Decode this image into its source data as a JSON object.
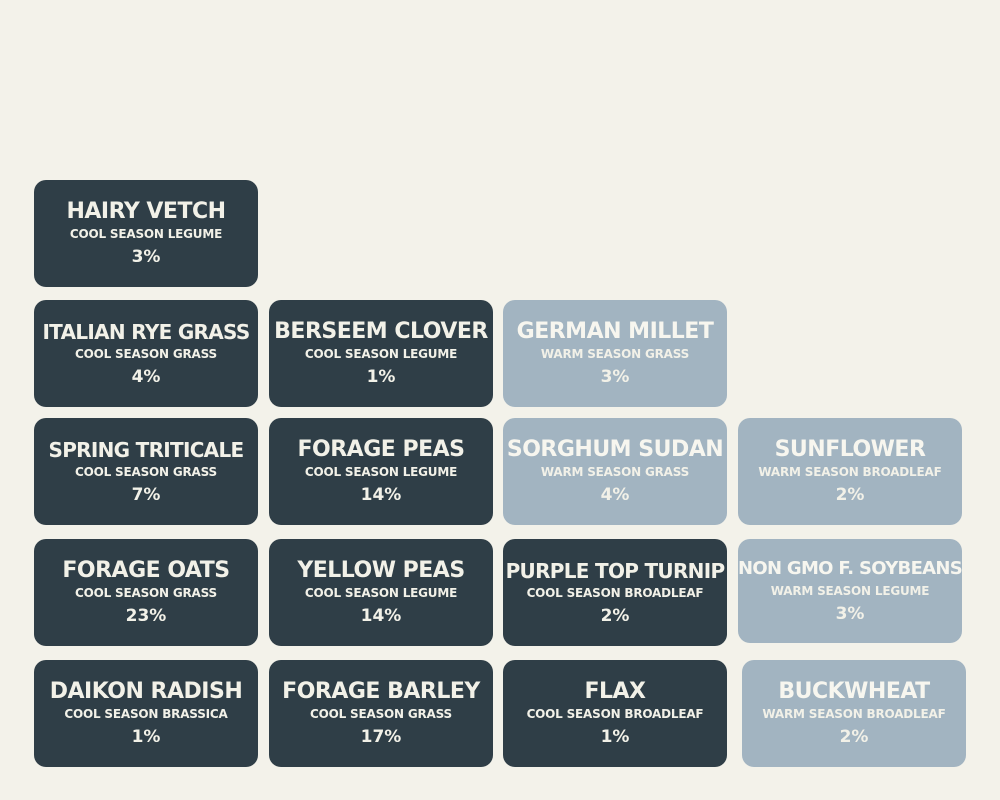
{
  "tiles": [
    {
      "name": "HAIRY VETCH",
      "category": "COOL SEASON LEGUME",
      "percent": "3%",
      "theme": "dark"
    },
    {
      "name": "ITALIAN RYE GRASS",
      "category": "COOL SEASON GRASS",
      "percent": "4%",
      "theme": "dark"
    },
    {
      "name": "BERSEEM CLOVER",
      "category": "COOL SEASON LEGUME",
      "percent": "1%",
      "theme": "dark"
    },
    {
      "name": "GERMAN MILLET",
      "category": "WARM SEASON GRASS",
      "percent": "3%",
      "theme": "light"
    },
    {
      "name": "SPRING TRITICALE",
      "category": "COOL SEASON GRASS",
      "percent": "7%",
      "theme": "dark"
    },
    {
      "name": "FORAGE PEAS",
      "category": "COOL SEASON LEGUME",
      "percent": "14%",
      "theme": "dark"
    },
    {
      "name": "SORGHUM SUDAN",
      "category": "WARM SEASON GRASS",
      "percent": "4%",
      "theme": "light"
    },
    {
      "name": "SUNFLOWER",
      "category": "WARM SEASON BROADLEAF",
      "percent": "2%",
      "theme": "light"
    },
    {
      "name": "FORAGE OATS",
      "category": "COOL SEASON GRASS",
      "percent": "23%",
      "theme": "dark"
    },
    {
      "name": "YELLOW PEAS",
      "category": "COOL SEASON LEGUME",
      "percent": "14%",
      "theme": "dark"
    },
    {
      "name": "PURPLE TOP TURNIP",
      "category": "COOL SEASON BROADLEAF",
      "percent": "2%",
      "theme": "dark"
    },
    {
      "name": "NON GMO F. SOYBEANS",
      "category": "WARM SEASON LEGUME",
      "percent": "3%",
      "theme": "light"
    },
    {
      "name": "DAIKON RADISH",
      "category": "COOL SEASON BRASSICA",
      "percent": "1%",
      "theme": "dark"
    },
    {
      "name": "FORAGE BARLEY",
      "category": "COOL SEASON GRASS",
      "percent": "17%",
      "theme": "dark"
    },
    {
      "name": "FLAX",
      "category": "COOL SEASON BROADLEAF",
      "percent": "1%",
      "theme": "dark"
    },
    {
      "name": "BUCKWHEAT",
      "category": "WARM SEASON BROADLEAF",
      "percent": "2%",
      "theme": "light"
    }
  ],
  "colors": {
    "background": "#f3f2ea",
    "dark_tile": "#2f3e47",
    "light_tile": "#a2b4c1",
    "text": "#f2f1e8"
  }
}
